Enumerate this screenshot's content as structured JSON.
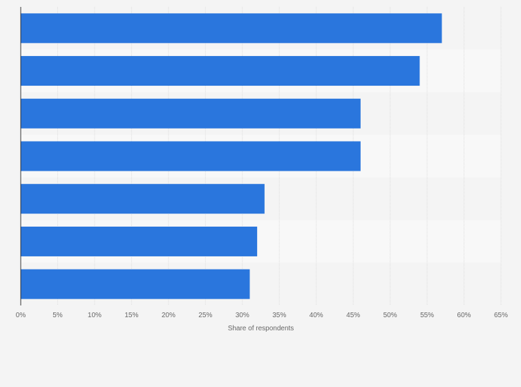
{
  "chart_data": {
    "type": "bar",
    "orientation": "horizontal",
    "categories": [
      "",
      "",
      "",
      "",
      "",
      "",
      ""
    ],
    "values": [
      57,
      54,
      46,
      46,
      33,
      32,
      31
    ],
    "title": "",
    "xlabel": "Share of respondents",
    "ylabel": "",
    "xlim": [
      0,
      65
    ],
    "x_ticks": [
      "0%",
      "5%",
      "10%",
      "15%",
      "20%",
      "25%",
      "30%",
      "35%",
      "40%",
      "45%",
      "50%",
      "55%",
      "60%",
      "65%"
    ],
    "grid": "vertical",
    "legend": "none",
    "colors": {
      "bar": "#2a76dd",
      "band_light": "#f8f8f8",
      "band_dark": "#f4f4f4",
      "grid": "#dddddd",
      "axis": "#333333"
    }
  }
}
